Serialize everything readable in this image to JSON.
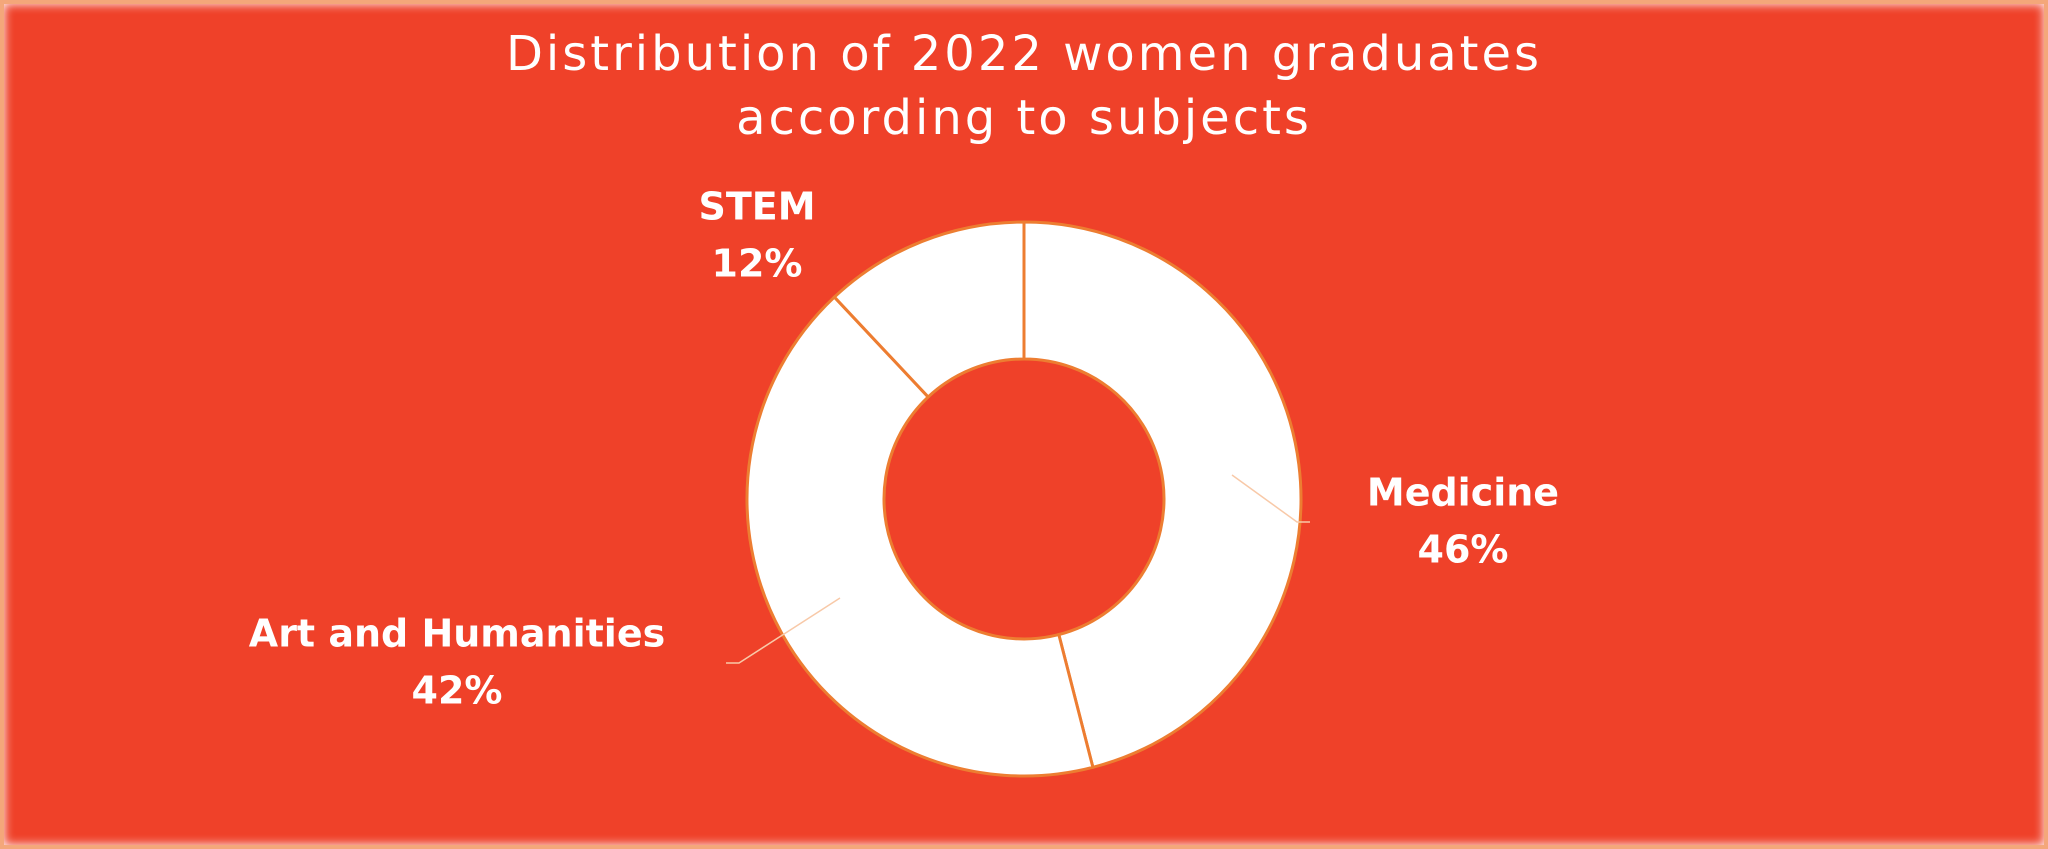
{
  "chart_data": {
    "type": "donut",
    "title": "Distribution of 2022 women graduates according to subjects",
    "categories": [
      "Medicine",
      "Art and Humanities",
      "STEM"
    ],
    "values": [
      46,
      42,
      12
    ],
    "value_labels": [
      "46%",
      "42%",
      "12%"
    ],
    "color": "#ffffff",
    "edge_color": "#ed7d31",
    "background": "#ef4129"
  }
}
